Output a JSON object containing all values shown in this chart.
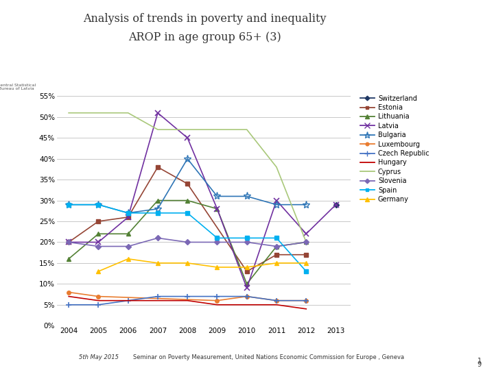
{
  "title_line1": "Analysis of trends in poverty and inequality",
  "title_line2": "AROP in age group 65+ (3)",
  "years": [
    2004,
    2005,
    2006,
    2007,
    2008,
    2009,
    2010,
    2011,
    2012,
    2013
  ],
  "series": {
    "Switzerland": {
      "color": "#1f3864",
      "marker": "D",
      "values": [
        null,
        null,
        null,
        null,
        null,
        null,
        null,
        null,
        null,
        29.0
      ]
    },
    "Estonia": {
      "color": "#954535",
      "marker": "s",
      "values": [
        20.0,
        25.0,
        26.0,
        38.0,
        34.0,
        null,
        13.0,
        17.0,
        17.0,
        null
      ]
    },
    "Lithuania": {
      "color": "#538135",
      "marker": "^",
      "values": [
        16.0,
        22.0,
        22.0,
        30.0,
        30.0,
        28.0,
        10.0,
        19.0,
        20.0,
        null
      ]
    },
    "Latvia": {
      "color": "#7030a0",
      "marker": "x",
      "values": [
        20.0,
        20.0,
        26.0,
        51.0,
        45.0,
        28.0,
        9.0,
        30.0,
        22.0,
        29.0
      ]
    },
    "Bulgaria": {
      "color": "#2e75b6",
      "marker": "*",
      "values": [
        29.0,
        29.0,
        27.0,
        28.0,
        40.0,
        31.0,
        31.0,
        29.0,
        29.0,
        null
      ]
    },
    "Luxembourg": {
      "color": "#e97c2f",
      "marker": "o",
      "values": [
        8.0,
        7.0,
        null,
        null,
        null,
        6.0,
        7.0,
        6.0,
        6.0,
        null
      ]
    },
    "Czech Republic": {
      "color": "#4472c4",
      "marker": "+",
      "values": [
        5.0,
        5.0,
        6.0,
        7.0,
        7.0,
        7.0,
        7.0,
        6.0,
        6.0,
        null
      ]
    },
    "Hungary": {
      "color": "#c00000",
      "marker": null,
      "values": [
        7.0,
        6.0,
        6.0,
        6.0,
        6.0,
        5.0,
        5.0,
        5.0,
        4.0,
        null
      ]
    },
    "Cyprus": {
      "color": "#a9c87a",
      "marker": null,
      "values": [
        51.0,
        51.0,
        51.0,
        47.0,
        47.0,
        47.0,
        47.0,
        38.0,
        20.0,
        null
      ]
    },
    "Slovenia": {
      "color": "#7b68b5",
      "marker": "D",
      "values": [
        20.0,
        19.0,
        19.0,
        21.0,
        20.0,
        20.0,
        20.0,
        19.0,
        20.0,
        null
      ]
    },
    "Spain": {
      "color": "#00b0f0",
      "marker": "s",
      "values": [
        29.0,
        29.0,
        27.0,
        27.0,
        27.0,
        21.0,
        21.0,
        21.0,
        13.0,
        null
      ]
    },
    "Germany": {
      "color": "#ffc000",
      "marker": "^",
      "values": [
        null,
        13.0,
        16.0,
        15.0,
        15.0,
        14.0,
        14.0,
        15.0,
        15.0,
        null
      ]
    }
  },
  "marker_sizes": {
    "D": 4,
    "s": 4,
    "^": 5,
    "x": 6,
    "*": 8,
    "o": 4,
    "+": 6
  },
  "ylim": [
    0,
    55
  ],
  "yticks": [
    0,
    5,
    10,
    15,
    20,
    25,
    30,
    35,
    40,
    45,
    50,
    55
  ],
  "ytick_labels": [
    "0%",
    "5%",
    "10%",
    "15%",
    "20%",
    "25%",
    "30%",
    "35%",
    "40%",
    "45%",
    "50%",
    "55%"
  ],
  "footer_left": "5th May 2015",
  "footer_right": "Seminar on Poverty Measurement, United Nations Economic Commission for Europe , Geneva",
  "bg_color": "#ffffff",
  "grid_color": "#bfbfbf",
  "teal_rect": "#00b0b0"
}
